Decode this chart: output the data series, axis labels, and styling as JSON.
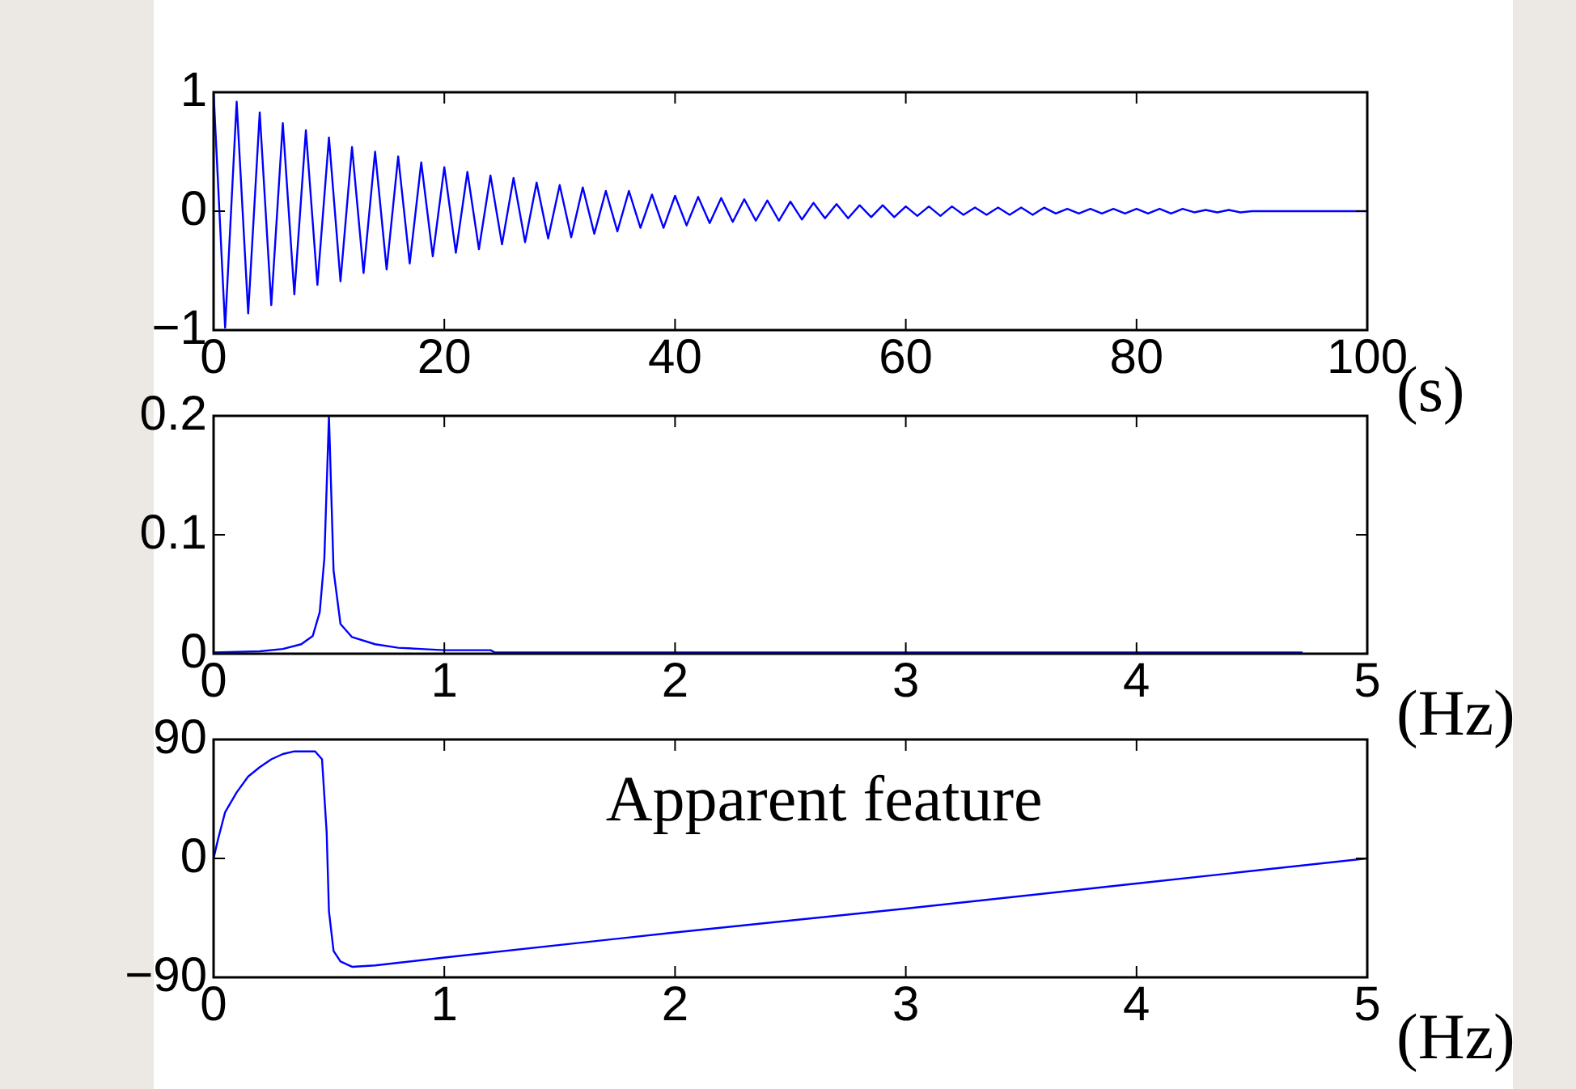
{
  "chart_data": [
    {
      "type": "line",
      "xlabel": "(s)",
      "xlim": [
        0,
        100
      ],
      "xticks": [
        0,
        20,
        40,
        60,
        80,
        100
      ],
      "ylim": [
        -1,
        1
      ],
      "yticks": [
        {
          "value": -1,
          "label": "−1"
        },
        0,
        1
      ],
      "legend": false,
      "x": [
        0,
        1,
        2,
        3,
        4,
        5,
        6,
        7,
        8,
        9,
        10,
        11,
        12,
        13,
        14,
        15,
        16,
        17,
        18,
        19,
        20,
        21,
        22,
        23,
        24,
        25,
        26,
        27,
        28,
        29,
        30,
        31,
        32,
        33,
        34,
        35,
        36,
        37,
        38,
        39,
        40,
        41,
        42,
        43,
        44,
        45,
        46,
        47,
        48,
        49,
        50,
        51,
        52,
        53,
        54,
        55,
        56,
        57,
        58,
        59,
        60,
        61,
        62,
        63,
        64,
        65,
        66,
        67,
        68,
        69,
        70,
        71,
        72,
        73,
        74,
        75,
        76,
        77,
        78,
        79,
        80,
        81,
        82,
        83,
        84,
        85,
        86,
        87,
        88,
        89,
        90,
        100
      ],
      "series": [
        {
          "color": "#0000ff",
          "values": [
            1,
            -0.98,
            0.92,
            -0.86,
            0.83,
            -0.79,
            0.74,
            -0.7,
            0.68,
            -0.62,
            0.62,
            -0.59,
            0.54,
            -0.52,
            0.5,
            -0.49,
            0.46,
            -0.44,
            0.41,
            -0.38,
            0.37,
            -0.35,
            0.33,
            -0.32,
            0.3,
            -0.28,
            0.28,
            -0.26,
            0.24,
            -0.23,
            0.22,
            -0.22,
            0.2,
            -0.19,
            0.17,
            -0.17,
            0.17,
            -0.14,
            0.14,
            -0.14,
            0.13,
            -0.12,
            0.12,
            -0.1,
            0.11,
            -0.09,
            0.1,
            -0.08,
            0.09,
            -0.08,
            0.08,
            -0.07,
            0.07,
            -0.06,
            0.06,
            -0.06,
            0.05,
            -0.05,
            0.05,
            -0.05,
            0.04,
            -0.04,
            0.04,
            -0.04,
            0.04,
            -0.03,
            0.03,
            -0.03,
            0.03,
            -0.03,
            0.03,
            -0.03,
            0.03,
            -0.02,
            0.02,
            -0.02,
            0.02,
            -0.02,
            0.02,
            -0.02,
            0.02,
            -0.02,
            0.02,
            -0.02,
            0.02,
            -0.01,
            0.01,
            -0.01,
            0.01,
            -0.01,
            0,
            0
          ]
        }
      ]
    },
    {
      "type": "line",
      "xlabel": "(Hz)",
      "xlim": [
        0,
        5
      ],
      "xticks": [
        0,
        1,
        2,
        3,
        4,
        5
      ],
      "ylim": [
        0,
        0.2
      ],
      "yticks": [
        0,
        0.1,
        0.2
      ],
      "legend": false,
      "x": [
        0,
        0.2,
        0.3,
        0.38,
        0.43,
        0.46,
        0.48,
        0.5,
        0.52,
        0.55,
        0.6,
        0.7,
        0.8,
        0.9,
        1,
        1.2,
        1.22,
        4.72
      ],
      "series": [
        {
          "color": "#0000ff",
          "values": [
            0.001,
            0.002,
            0.004,
            0.008,
            0.015,
            0.035,
            0.08,
            0.2,
            0.07,
            0.025,
            0.014,
            0.008,
            0.005,
            0.004,
            0.003,
            0.003,
            0.001,
            0.001
          ]
        }
      ]
    },
    {
      "type": "line",
      "xlabel": "(Hz)",
      "xlim": [
        0,
        5
      ],
      "xticks": [
        0,
        1,
        2,
        3,
        4,
        5
      ],
      "ylim": [
        -90,
        90
      ],
      "yticks": [
        {
          "value": -90,
          "label": "−90"
        },
        0,
        90
      ],
      "legend": false,
      "annotations": [
        "Apparent feature"
      ],
      "x": [
        0,
        0.02,
        0.05,
        0.1,
        0.15,
        0.2,
        0.25,
        0.3,
        0.35,
        0.44,
        0.47,
        0.49,
        0.5,
        0.52,
        0.55,
        0.6,
        0.7,
        1,
        2,
        3,
        4,
        5
      ],
      "series": [
        {
          "color": "#0000ff",
          "values": [
            0,
            15,
            35,
            50,
            62,
            69,
            75,
            79,
            81,
            81,
            75,
            20,
            -40,
            -70,
            -78,
            -82,
            -81,
            -75,
            -56,
            -38,
            -19,
            0
          ]
        }
      ]
    }
  ]
}
